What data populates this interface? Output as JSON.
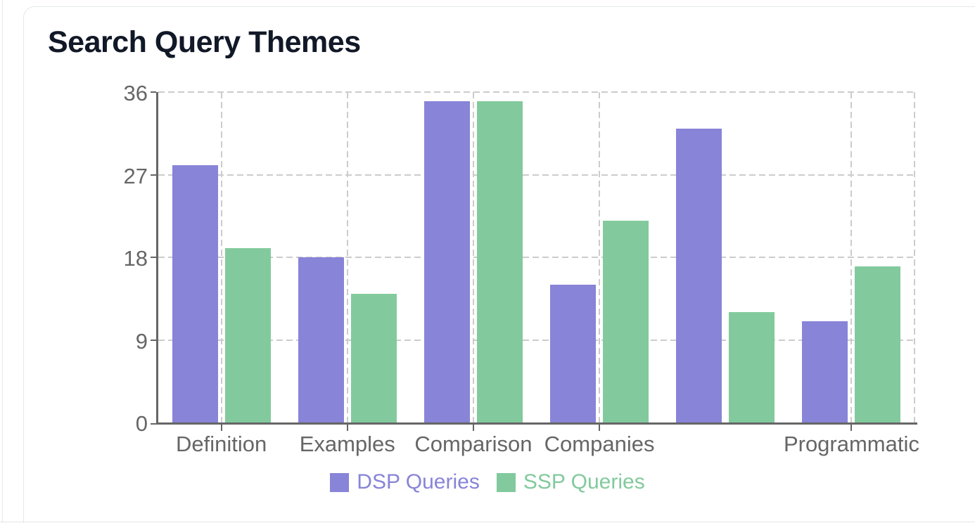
{
  "chart_data": {
    "type": "bar",
    "title": "Search Query Themes",
    "categories": [
      "Definition",
      "Examples",
      "Comparison",
      "Companies",
      "",
      "Programmatic"
    ],
    "series": [
      {
        "name": "DSP Queries",
        "color": "#8884d8",
        "values": [
          28,
          18,
          35,
          15,
          32,
          11
        ]
      },
      {
        "name": "SSP Queries",
        "color": "#82ca9d",
        "values": [
          19,
          14,
          35,
          22,
          12,
          17
        ]
      }
    ],
    "y_axis": {
      "min": 0,
      "max": 36,
      "ticks": [
        0,
        9,
        18,
        27,
        36
      ]
    },
    "x_axis": {
      "shown_tick_labels": [
        "Definition",
        "Examples",
        "Comparison",
        "Companies",
        "Programmatic"
      ]
    },
    "grid": {
      "style": "dashed",
      "horizontal": true,
      "vertical": true,
      "color": "#cccccc"
    },
    "axis_color": "#666666",
    "tick_label_color": "#666666",
    "legend": {
      "position": "bottom",
      "items": [
        "DSP Queries",
        "SSP Queries"
      ]
    }
  }
}
